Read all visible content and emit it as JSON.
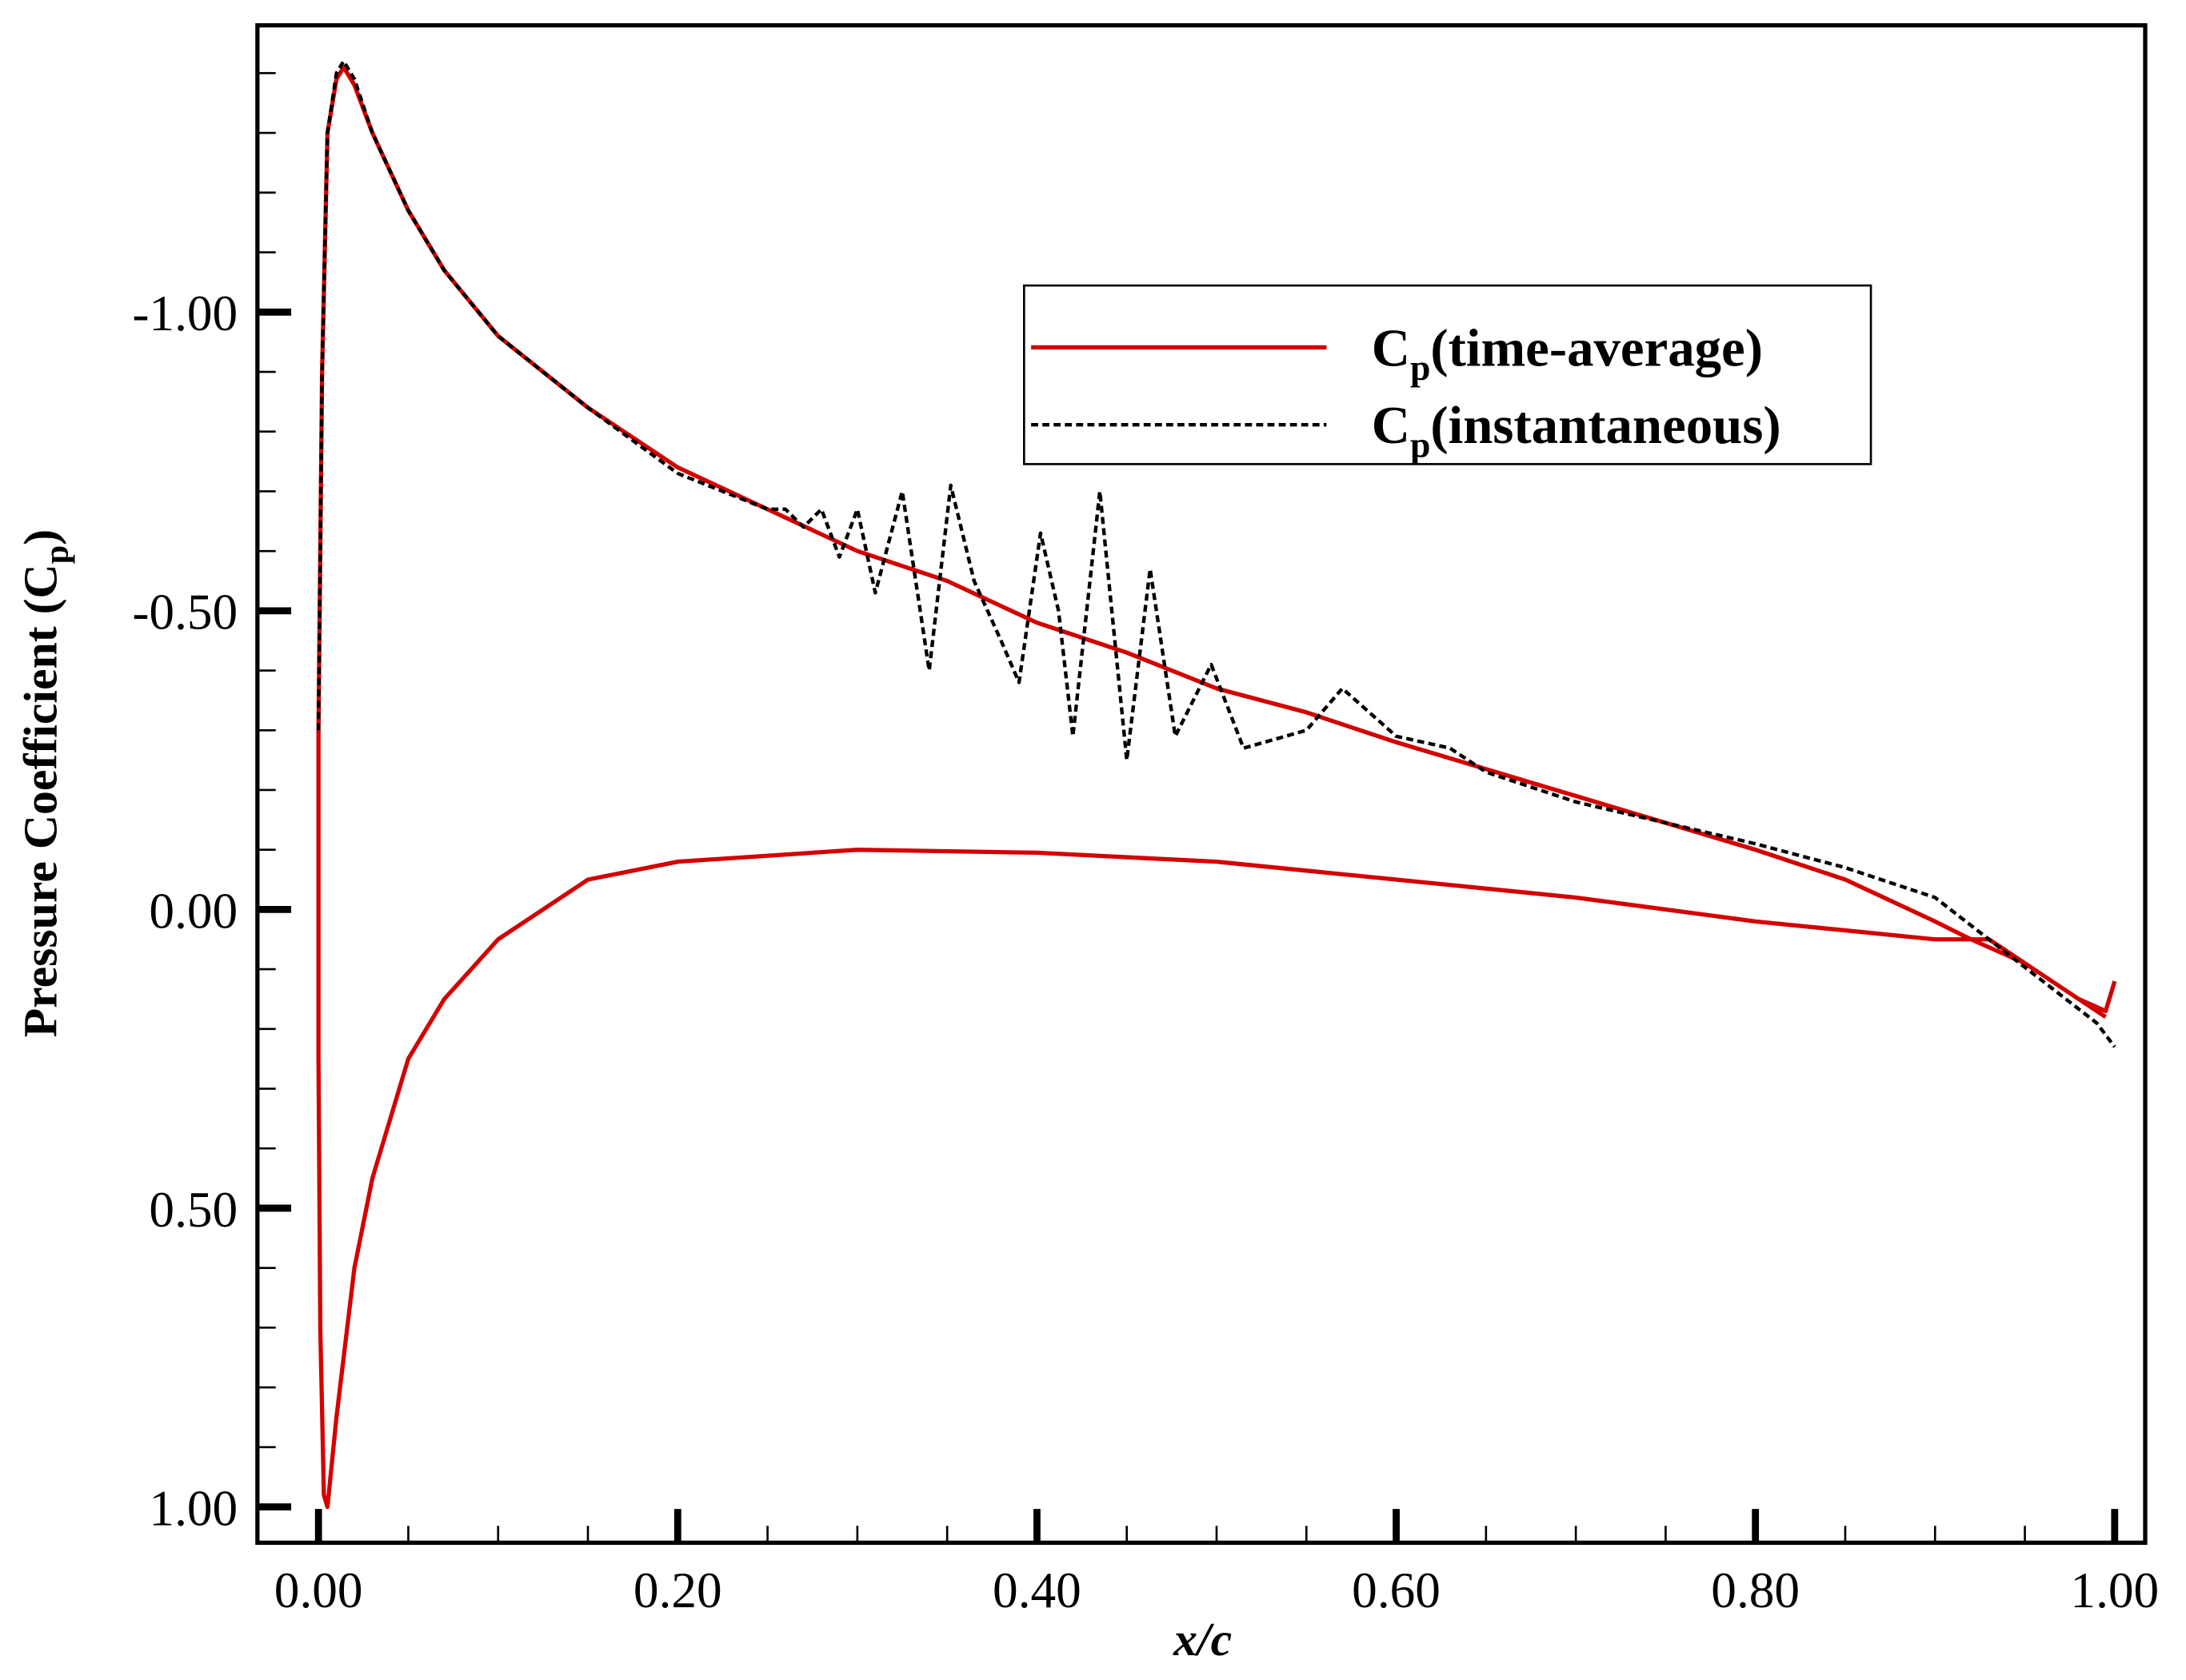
{
  "chart_data": {
    "type": "line",
    "xlabel": "x/c",
    "ylabel": {
      "text": "Pressure Coefficient (C",
      "sub": "p",
      "end": ")"
    },
    "xlim": [
      -0.034,
      1.017
    ],
    "ylim": [
      -1.48,
      1.06
    ],
    "y_inverted": true,
    "xticks": [
      {
        "value": 0,
        "label": "0.00"
      },
      {
        "value": 0.2,
        "label": "0.20"
      },
      {
        "value": 0.4,
        "label": "0.40"
      },
      {
        "value": 0.6,
        "label": "0.60"
      },
      {
        "value": 0.8,
        "label": "0.80"
      },
      {
        "value": 1,
        "label": "1.00"
      }
    ],
    "xminorticks": [
      0.05,
      0.1,
      0.15,
      0.25,
      0.3,
      0.35,
      0.45,
      0.5,
      0.55,
      0.65,
      0.7,
      0.75,
      0.85,
      0.9,
      0.95
    ],
    "yticks": [
      {
        "value": -1,
        "label": "-1.00"
      },
      {
        "value": -0.5,
        "label": "-0.50"
      },
      {
        "value": 0,
        "label": "0.00"
      },
      {
        "value": 0.5,
        "label": "0.50"
      },
      {
        "value": 1,
        "label": "1.00"
      }
    ],
    "yminorticks": [
      -1.4,
      -1.3,
      -1.2,
      -1.1,
      -0.9,
      -0.8,
      -0.7,
      -0.6,
      -0.4,
      -0.3,
      -0.2,
      -0.1,
      0.1,
      0.2,
      0.3,
      0.4,
      0.6,
      0.7,
      0.8,
      0.9
    ],
    "series": [
      {
        "name": {
          "base": "C",
          "sub": "p",
          "text": "(time-average)"
        },
        "color": "#d40000",
        "dash": false,
        "x": [
          1.0,
          0.995,
          0.98,
          0.95,
          0.93,
          0.9,
          0.8,
          0.7,
          0.6,
          0.5,
          0.4,
          0.3,
          0.2,
          0.15,
          0.1,
          0.07,
          0.05,
          0.03,
          0.02,
          0.01,
          0.005,
          0.003,
          0.001,
          0.0,
          0.0,
          0.002,
          0.005,
          0.01,
          0.014,
          0.02,
          0.03,
          0.05,
          0.07,
          0.1,
          0.15,
          0.2,
          0.25,
          0.3,
          0.35,
          0.4,
          0.45,
          0.5,
          0.55,
          0.6,
          0.7,
          0.8,
          0.85,
          0.9,
          0.92,
          0.95,
          0.98,
          0.995
        ],
        "values": [
          0.12,
          0.17,
          0.15,
          0.09,
          0.05,
          0.05,
          0.02,
          -0.02,
          -0.05,
          -0.08,
          -0.095,
          -0.1,
          -0.08,
          -0.05,
          0.05,
          0.15,
          0.25,
          0.45,
          0.6,
          0.85,
          1.0,
          0.98,
          0.7,
          0.25,
          -0.3,
          -0.9,
          -1.3,
          -1.39,
          -1.41,
          -1.38,
          -1.3,
          -1.17,
          -1.07,
          -0.96,
          -0.84,
          -0.74,
          -0.67,
          -0.6,
          -0.55,
          -0.48,
          -0.43,
          -0.37,
          -0.33,
          -0.28,
          -0.19,
          -0.1,
          -0.05,
          0.02,
          0.05,
          0.09,
          0.15,
          0.18
        ]
      },
      {
        "name": {
          "base": "C",
          "sub": "p",
          "text": "(instantaneous)"
        },
        "color": "#000000",
        "dash": true,
        "x": [
          0.0,
          0.002,
          0.005,
          0.01,
          0.014,
          0.02,
          0.03,
          0.05,
          0.07,
          0.1,
          0.15,
          0.2,
          0.25,
          0.26,
          0.27,
          0.28,
          0.29,
          0.3,
          0.31,
          0.325,
          0.34,
          0.352,
          0.365,
          0.38,
          0.39,
          0.402,
          0.412,
          0.42,
          0.435,
          0.45,
          0.463,
          0.477,
          0.497,
          0.515,
          0.55,
          0.57,
          0.6,
          0.63,
          0.65,
          0.7,
          0.8,
          0.85,
          0.9,
          0.93,
          0.96,
          0.99,
          1.0
        ],
        "values": [
          -0.3,
          -0.9,
          -1.3,
          -1.4,
          -1.42,
          -1.39,
          -1.3,
          -1.17,
          -1.07,
          -0.96,
          -0.84,
          -0.73,
          -0.67,
          -0.67,
          -0.64,
          -0.67,
          -0.59,
          -0.67,
          -0.53,
          -0.7,
          -0.4,
          -0.71,
          -0.55,
          -0.45,
          -0.38,
          -0.63,
          -0.5,
          -0.29,
          -0.7,
          -0.25,
          -0.57,
          -0.29,
          -0.41,
          -0.27,
          -0.3,
          -0.37,
          -0.29,
          -0.27,
          -0.23,
          -0.18,
          -0.11,
          -0.07,
          -0.02,
          0.05,
          0.12,
          0.19,
          0.23
        ]
      }
    ]
  }
}
